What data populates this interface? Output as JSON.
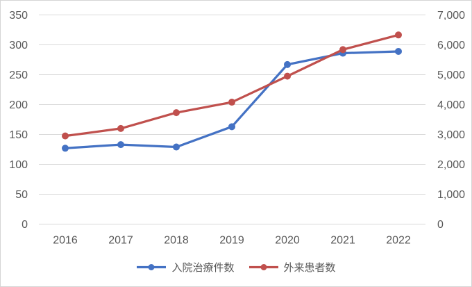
{
  "chart_data": {
    "type": "line",
    "title": "",
    "categories": [
      "2016",
      "2017",
      "2018",
      "2019",
      "2020",
      "2021",
      "2022"
    ],
    "series": [
      {
        "name": "入院治療件数",
        "axis": "left",
        "color": "#4472C4",
        "marker": "circle",
        "values": [
          127,
          133,
          129,
          163,
          267,
          286,
          289
        ]
      },
      {
        "name": "外来患者数",
        "axis": "right",
        "color": "#C0504D",
        "marker": "circle",
        "values": [
          2950,
          3200,
          3730,
          4080,
          4950,
          5840,
          6330
        ]
      }
    ],
    "left_axis": {
      "min": 0,
      "max": 350,
      "step": 50,
      "ticks": [
        "0",
        "50",
        "100",
        "150",
        "200",
        "250",
        "300",
        "350"
      ]
    },
    "right_axis": {
      "min": 0,
      "max": 7000,
      "step": 1000,
      "ticks": [
        "0",
        "1,000",
        "2,000",
        "3,000",
        "4,000",
        "5,000",
        "6,000",
        "7,000"
      ]
    },
    "grid": true,
    "legend_position": "bottom"
  },
  "style": {
    "gridline_color": "#D9D9D9",
    "axis_text_color": "#595959",
    "border_color": "#D5D5D5",
    "background": "#FFFFFF"
  }
}
